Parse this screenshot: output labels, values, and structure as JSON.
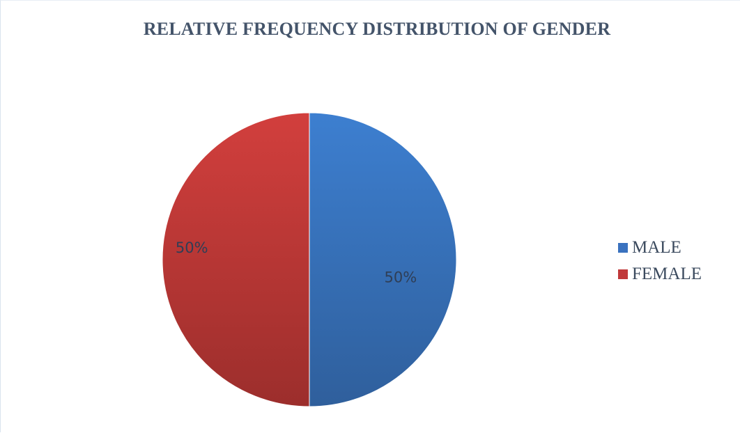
{
  "chart_data": {
    "type": "pie",
    "title": "RELATIVE FREQUENCY DISTRIBUTION OF GENDER",
    "categories": [
      "MALE",
      "FEMALE"
    ],
    "values": [
      50,
      50
    ],
    "labels": [
      "50%",
      "50%"
    ],
    "colors": [
      "#3a72bf",
      "#c0393a"
    ],
    "legend_position": "right"
  }
}
